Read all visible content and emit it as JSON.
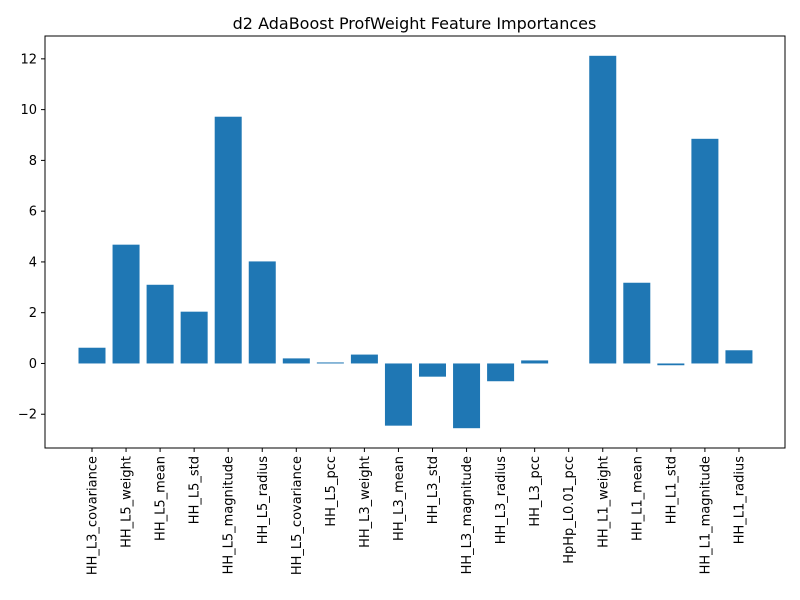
{
  "chart_data": {
    "type": "bar",
    "title": "d2 AdaBoost ProfWeight Feature Importances",
    "xlabel": "",
    "ylabel": "",
    "categories": [
      "HH_L3_covariance",
      "HH_L5_weight",
      "HH_L5_mean",
      "HH_L5_std",
      "HH_L5_magnitude",
      "HH_L5_radius",
      "HH_L5_covariance",
      "HH_L5_pcc",
      "HH_L3_weight",
      "HH_L3_mean",
      "HH_L3_std",
      "HH_L3_magnitude",
      "HH_L3_radius",
      "HH_L3_pcc",
      "HpHp_L0.01_pcc",
      "HH_L1_weight",
      "HH_L1_mean",
      "HH_L1_std",
      "HH_L1_magnitude",
      "HH_L1_radius"
    ],
    "values": [
      0.62,
      4.68,
      3.1,
      2.04,
      9.72,
      4.02,
      0.2,
      0.04,
      0.35,
      -2.45,
      -0.52,
      -2.55,
      -0.7,
      0.12,
      0.0,
      12.12,
      3.18,
      -0.07,
      8.85,
      0.52
    ],
    "yticks": [
      -2,
      0,
      2,
      4,
      6,
      8,
      10,
      12
    ],
    "ylim": [
      -3.33,
      12.9
    ],
    "grid": false,
    "colors": {
      "bar": "#1f77b4",
      "axis": "#000000"
    }
  }
}
